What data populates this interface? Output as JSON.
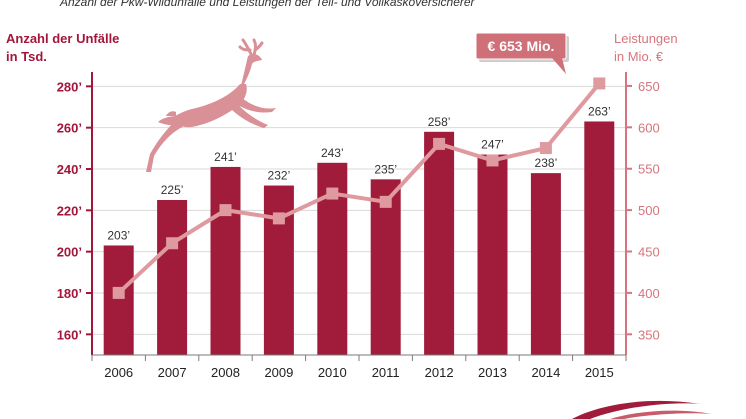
{
  "header": {
    "subtitle": "Anzahl der Pkw-Wildunfälle und Leistungen der Teil- und Vollkaskoversicherer"
  },
  "callout": {
    "label": "€ 653 Mio."
  },
  "colors": {
    "bar": "#a01c3a",
    "line": "#df9aa0",
    "axis_left": "#a3163a",
    "axis_right": "#d7747c",
    "deer": "#d99096",
    "callout_bg": "#cf6f77"
  },
  "icons": {
    "deer": "deer-icon",
    "logo": "logo-swoosh"
  },
  "chart_data": {
    "type": "bar",
    "categories": [
      "2006",
      "2007",
      "2008",
      "2009",
      "2010",
      "2011",
      "2012",
      "2013",
      "2014",
      "2015"
    ],
    "ylabel": "Anzahl der Unfälle in Tsd.",
    "ylabel_lines": [
      "Anzahl der Unfälle",
      "in Tsd."
    ],
    "y2label": "Leistungen in Mio. €",
    "y2label_lines": [
      "Leistungen",
      "in Mio. €"
    ],
    "ylim": [
      150,
      285
    ],
    "yticks": [
      160,
      180,
      200,
      220,
      240,
      260,
      280
    ],
    "ytick_labels": [
      "160’",
      "180’",
      "200’",
      "220’",
      "240’",
      "260’",
      "280’"
    ],
    "y2lim": [
      325,
      662
    ],
    "y2ticks": [
      350,
      400,
      450,
      500,
      550,
      600,
      650
    ],
    "y2tick_labels": [
      "350",
      "400",
      "450",
      "500",
      "550",
      "600",
      "650"
    ],
    "series": [
      {
        "name": "Anzahl der Unfälle in Tsd.",
        "type": "bar",
        "axis": "left",
        "values": [
          203,
          225,
          241,
          232,
          243,
          235,
          258,
          247,
          238,
          263
        ],
        "labels": [
          "203’",
          "225’",
          "241’",
          "232’",
          "243’",
          "235’",
          "258’",
          "247’",
          "238’",
          "263’"
        ]
      },
      {
        "name": "Leistungen in Mio. €",
        "type": "line",
        "axis": "right",
        "values": [
          400,
          460,
          500,
          490,
          520,
          510,
          580,
          560,
          575,
          653
        ]
      }
    ],
    "grid": true,
    "legend": "none"
  }
}
